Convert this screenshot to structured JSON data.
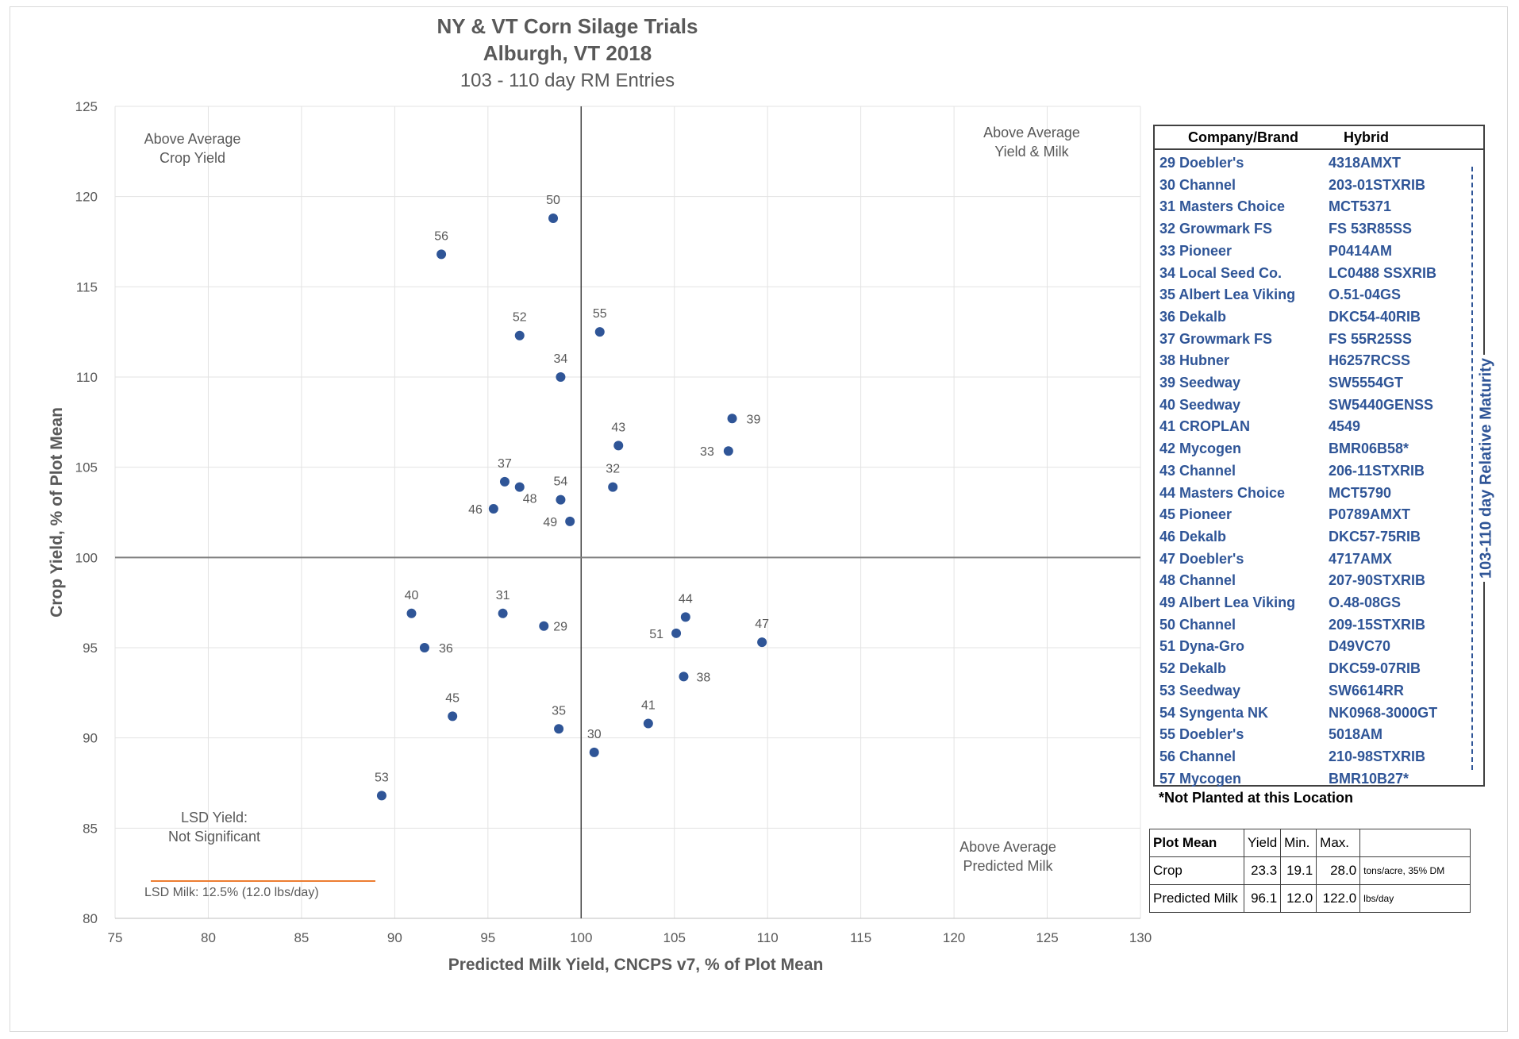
{
  "chart_data": {
    "type": "scatter",
    "title": "NY & VT Corn Silage Trials",
    "subtitle_1": "Alburgh, VT 2018",
    "subtitle_2": "103 - 110 day RM Entries",
    "xlabel": "Predicted Milk Yield, CNCPS v7, % of Plot Mean",
    "ylabel": "Crop Yield,  % of Plot Mean",
    "xlim": [
      75,
      130
    ],
    "ylim": [
      80,
      125
    ],
    "xticks": [
      "75",
      "80",
      "85",
      "90",
      "95",
      "100",
      "105",
      "110",
      "115",
      "120",
      "125",
      "130"
    ],
    "yticks": [
      "80",
      "85",
      "90",
      "95",
      "100",
      "105",
      "110",
      "115",
      "120",
      "125"
    ],
    "reference_lines": {
      "x": 100,
      "y": 100
    },
    "grid": true,
    "marker_color": "#2f5597",
    "points": [
      {
        "label": "29",
        "x": 98.0,
        "y": 96.2
      },
      {
        "label": "30",
        "x": 100.7,
        "y": 89.2
      },
      {
        "label": "31",
        "x": 95.8,
        "y": 96.9
      },
      {
        "label": "32",
        "x": 101.7,
        "y": 103.9
      },
      {
        "label": "33",
        "x": 107.9,
        "y": 105.9
      },
      {
        "label": "34",
        "x": 98.9,
        "y": 110.0
      },
      {
        "label": "35",
        "x": 98.8,
        "y": 90.5
      },
      {
        "label": "36",
        "x": 91.6,
        "y": 95.0
      },
      {
        "label": "37",
        "x": 95.9,
        "y": 104.2
      },
      {
        "label": "38",
        "x": 105.5,
        "y": 93.4
      },
      {
        "label": "39",
        "x": 108.1,
        "y": 107.7
      },
      {
        "label": "40",
        "x": 90.9,
        "y": 96.9
      },
      {
        "label": "41",
        "x": 103.6,
        "y": 90.8
      },
      {
        "label": "43",
        "x": 102.0,
        "y": 106.2
      },
      {
        "label": "44",
        "x": 105.6,
        "y": 96.7
      },
      {
        "label": "45",
        "x": 93.1,
        "y": 91.2
      },
      {
        "label": "46",
        "x": 95.3,
        "y": 102.7
      },
      {
        "label": "47",
        "x": 109.7,
        "y": 95.3
      },
      {
        "label": "48",
        "x": 96.7,
        "y": 103.9
      },
      {
        "label": "49",
        "x": 99.4,
        "y": 102.0
      },
      {
        "label": "50",
        "x": 98.5,
        "y": 118.8
      },
      {
        "label": "51",
        "x": 105.1,
        "y": 95.8
      },
      {
        "label": "52",
        "x": 96.7,
        "y": 112.3
      },
      {
        "label": "53",
        "x": 89.3,
        "y": 86.8
      },
      {
        "label": "54",
        "x": 98.9,
        "y": 103.2
      },
      {
        "label": "55",
        "x": 101.0,
        "y": 112.5
      },
      {
        "label": "56",
        "x": 92.5,
        "y": 116.8
      }
    ],
    "annotations": {
      "top_left": [
        "Above Average",
        "Crop Yield"
      ],
      "top_right": [
        "Above Average",
        "Yield & Milk"
      ],
      "bottom_right": [
        "Above Average",
        "Predicted Milk"
      ],
      "lsd_yield": [
        "LSD Yield:",
        "Not Significant"
      ],
      "lsd_milk": "LSD Milk: 12.5% (12.0 lbs/day)",
      "lsd_milk_color": "#ed7d31"
    }
  },
  "legend": {
    "col1": "Company/Brand",
    "col2": "Hybrid",
    "rows": [
      {
        "co": "29 Doebler's",
        "hy": "4318AMXT"
      },
      {
        "co": "30 Channel",
        "hy": "203-01STXRIB"
      },
      {
        "co": "31 Masters Choice",
        "hy": "MCT5371"
      },
      {
        "co": "32 Growmark FS",
        "hy": "FS 53R85SS"
      },
      {
        "co": "33 Pioneer",
        "hy": "P0414AM"
      },
      {
        "co": "34 Local Seed Co.",
        "hy": "LC0488 SSXRIB"
      },
      {
        "co": "35 Albert Lea Viking",
        "hy": "O.51-04GS"
      },
      {
        "co": "36 Dekalb",
        "hy": "DKC54-40RIB"
      },
      {
        "co": "37 Growmark FS",
        "hy": "FS 55R25SS"
      },
      {
        "co": "38 Hubner",
        "hy": "H6257RCSS"
      },
      {
        "co": "39 Seedway",
        "hy": "SW5554GT"
      },
      {
        "co": "40 Seedway",
        "hy": "SW5440GENSS"
      },
      {
        "co": "41 CROPLAN",
        "hy": "4549"
      },
      {
        "co": "42 Mycogen",
        "hy": "BMR06B58*"
      },
      {
        "co": "43 Channel",
        "hy": "206-11STXRIB"
      },
      {
        "co": "44 Masters Choice",
        "hy": "MCT5790"
      },
      {
        "co": "45 Pioneer",
        "hy": "P0789AMXT"
      },
      {
        "co": "46 Dekalb",
        "hy": "DKC57-75RIB"
      },
      {
        "co": "47 Doebler's",
        "hy": "4717AMX"
      },
      {
        "co": "48 Channel",
        "hy": "207-90STXRIB"
      },
      {
        "co": "49 Albert Lea Viking",
        "hy": "O.48-08GS"
      },
      {
        "co": "50 Channel",
        "hy": "209-15STXRIB"
      },
      {
        "co": "51 Dyna-Gro",
        "hy": "D49VC70"
      },
      {
        "co": "52 Dekalb",
        "hy": "DKC59-07RIB"
      },
      {
        "co": "53 Seedway",
        "hy": "SW6614RR"
      },
      {
        "co": "54 Syngenta NK",
        "hy": "NK0968-3000GT"
      },
      {
        "co": "55 Doebler's",
        "hy": "5018AM"
      },
      {
        "co": "56 Channel",
        "hy": "210-98STXRIB"
      },
      {
        "co": "57 Mycogen",
        "hy": "BMR10B27*"
      }
    ],
    "maturity_label": "103-110 day Relative Maturity",
    "note": "*Not Planted at this Location"
  },
  "plot_mean_table": {
    "header": [
      "Plot Mean",
      "Yield",
      "Min.",
      "Max.",
      ""
    ],
    "rows": [
      {
        "name": "Crop",
        "yield": "23.3",
        "min": "19.1",
        "max": "28.0",
        "unit": "tons/acre, 35% DM"
      },
      {
        "name": "Predicted Milk",
        "yield": "96.1",
        "min": "12.0",
        "max": "122.0",
        "unit": "lbs/day"
      }
    ]
  }
}
